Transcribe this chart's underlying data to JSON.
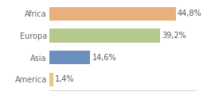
{
  "categories": [
    "America",
    "Asia",
    "Europa",
    "Africa"
  ],
  "values": [
    1.4,
    14.6,
    39.2,
    44.8
  ],
  "labels": [
    "1,4%",
    "14,6%",
    "39,2%",
    "44,8%"
  ],
  "bar_colors": [
    "#e8c87a",
    "#6b8fbf",
    "#b5c98e",
    "#e8b07a"
  ],
  "xlim": [
    0,
    52
  ],
  "background_color": "#ffffff",
  "label_fontsize": 7.0,
  "tick_fontsize": 7.0,
  "bar_height": 0.62
}
